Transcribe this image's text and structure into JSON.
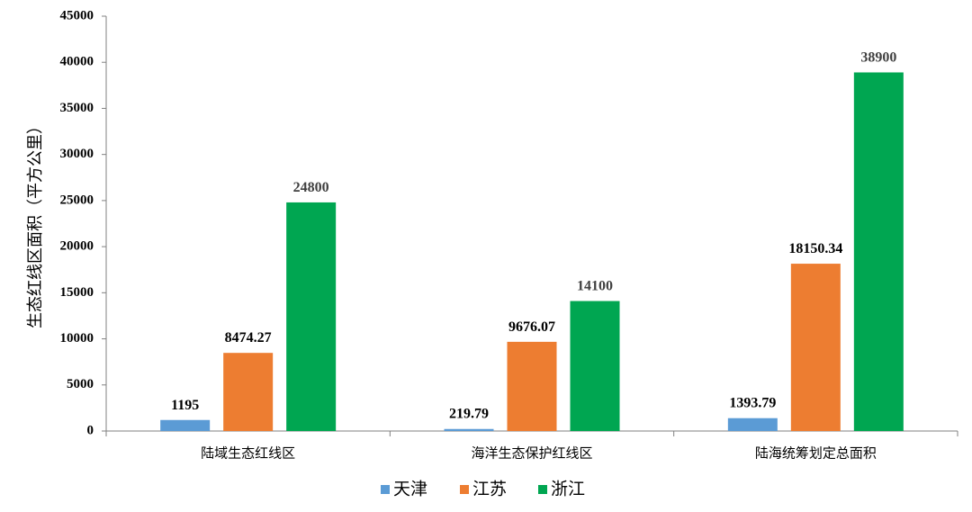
{
  "chart_data": {
    "type": "bar",
    "categories": [
      "陆域生态红线区",
      "海洋生态保护红线区",
      "陆海统筹划定总面积"
    ],
    "series": [
      {
        "name": "天津",
        "color": "#5B9BD5",
        "values": [
          1195,
          219.79,
          1393.79
        ],
        "labels": [
          "1195",
          "219.79",
          "1393.79"
        ],
        "label_color": "#000000"
      },
      {
        "name": "江苏",
        "color": "#ED7D31",
        "values": [
          8474.27,
          9676.07,
          18150.34
        ],
        "labels": [
          "8474.27",
          "9676.07",
          "18150.34"
        ],
        "label_color": "#000000"
      },
      {
        "name": "浙江",
        "color": "#00A651",
        "values": [
          24800,
          14100,
          38900
        ],
        "labels": [
          "24800",
          "14100",
          "38900"
        ],
        "label_color": "#404040"
      }
    ],
    "ylabel": "生态红线区面积（平方公里）",
    "xlabel": "",
    "ylim": [
      0,
      45000
    ],
    "yticks": [
      "0",
      "5000",
      "10000",
      "15000",
      "20000",
      "25000",
      "30000",
      "35000",
      "40000",
      "45000"
    ],
    "grid": false,
    "legend_position": "bottom"
  }
}
